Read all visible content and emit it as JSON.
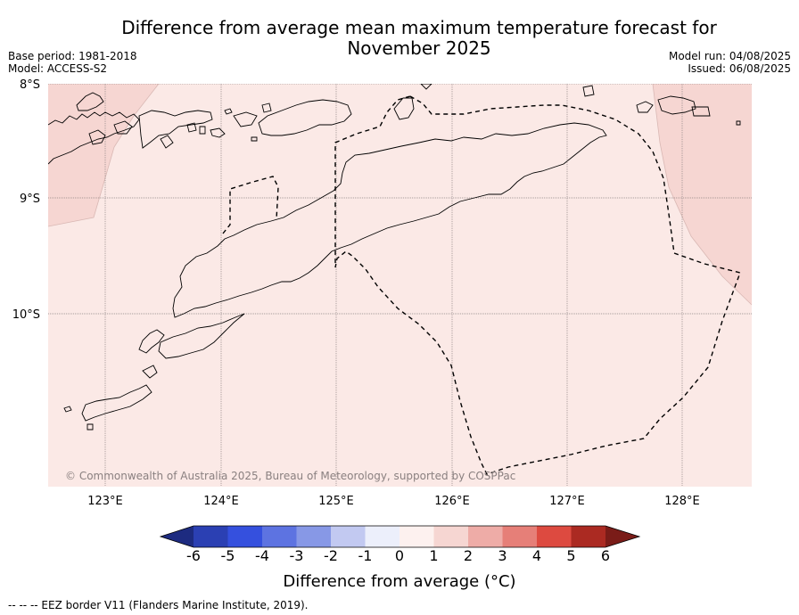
{
  "title": "Difference from average mean maximum temperature forecast for November 2025",
  "title_line1": "Difference from average mean maximum temperature forecast for",
  "title_line2": "November 2025",
  "meta": {
    "base_period": "Base period: 1981-2018",
    "model": "Model: ACCESS-S2",
    "model_run": "Model run: 04/08/2025",
    "issued": "Issued: 06/08/2025"
  },
  "map": {
    "lat_labels": [
      "8°S",
      "9°S",
      "10°S"
    ],
    "lon_labels": [
      "123°E",
      "124°E",
      "125°E",
      "126°E",
      "127°E",
      "128°E"
    ],
    "lon_range": [
      122.55,
      128.6
    ],
    "lat_range": [
      -11.5,
      -8.0
    ],
    "copyright": "© Commonwealth of Australia 2025, Bureau of Meteorology, supported by COSPPac",
    "fill_colors": {
      "zero_to_one": "#fbe9e6",
      "one_to_two": "#f6d6d2"
    }
  },
  "colorbar": {
    "tick_labels": [
      "-6",
      "-5",
      "-4",
      "-3",
      "-2",
      "-1",
      "0",
      "1",
      "2",
      "3",
      "4",
      "5",
      "6"
    ],
    "colors": [
      "#1d2b80",
      "#2b40b3",
      "#3550de",
      "#5d73e1",
      "#8798e6",
      "#c2c9f1",
      "#eceffb",
      "#fdf1ef",
      "#f6d6d2",
      "#eeaca7",
      "#e67f78",
      "#dd4a40",
      "#ab2a22",
      "#7a1c18"
    ],
    "title": "Difference from average (°C)"
  },
  "footnote": "--  --  -- EEZ border V11 (Flanders Marine Institute, 2019)."
}
